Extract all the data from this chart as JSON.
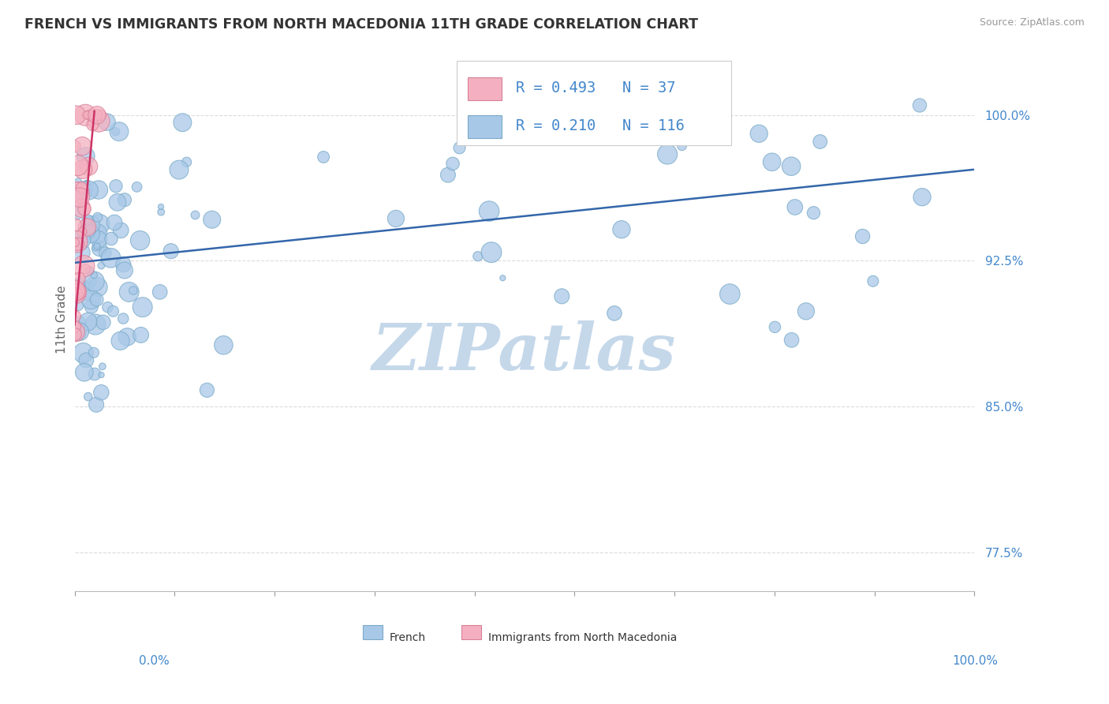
{
  "title": "FRENCH VS IMMIGRANTS FROM NORTH MACEDONIA 11TH GRADE CORRELATION CHART",
  "source": "Source: ZipAtlas.com",
  "ylabel": "11th Grade",
  "ytick_labels": [
    "77.5%",
    "85.0%",
    "92.5%",
    "100.0%"
  ],
  "ytick_values": [
    0.775,
    0.85,
    0.925,
    1.0
  ],
  "legend_entries": [
    {
      "label": "French",
      "color": "#a8c8e8",
      "border": "#7aaac8",
      "R": "0.210",
      "N": "116"
    },
    {
      "label": "Immigrants from North Macedonia",
      "color": "#f4b0c0",
      "border": "#d88098",
      "R": "0.493",
      "N": "37"
    }
  ],
  "blue_trend_x": [
    0.0,
    1.0
  ],
  "blue_trend_y": [
    0.924,
    0.972
  ],
  "pink_trend_x": [
    0.0,
    0.022
  ],
  "pink_trend_y": [
    0.892,
    1.002
  ],
  "blue_color": "#a8c8e8",
  "blue_edge": "#7aaac8",
  "pink_color": "#f4b0c0",
  "pink_edge": "#d88098",
  "blue_line_color": "#3366aa",
  "pink_line_color": "#cc3366",
  "background_color": "#ffffff",
  "watermark": "ZIPatlas",
  "watermark_color": "#c5d8ea",
  "grid_color": "#cccccc",
  "title_color": "#333333",
  "axis_label_color": "#4488cc",
  "ylabel_color": "#666666",
  "source_color": "#999999",
  "ylim": [
    0.755,
    1.035
  ],
  "xlim": [
    0.0,
    1.0
  ]
}
